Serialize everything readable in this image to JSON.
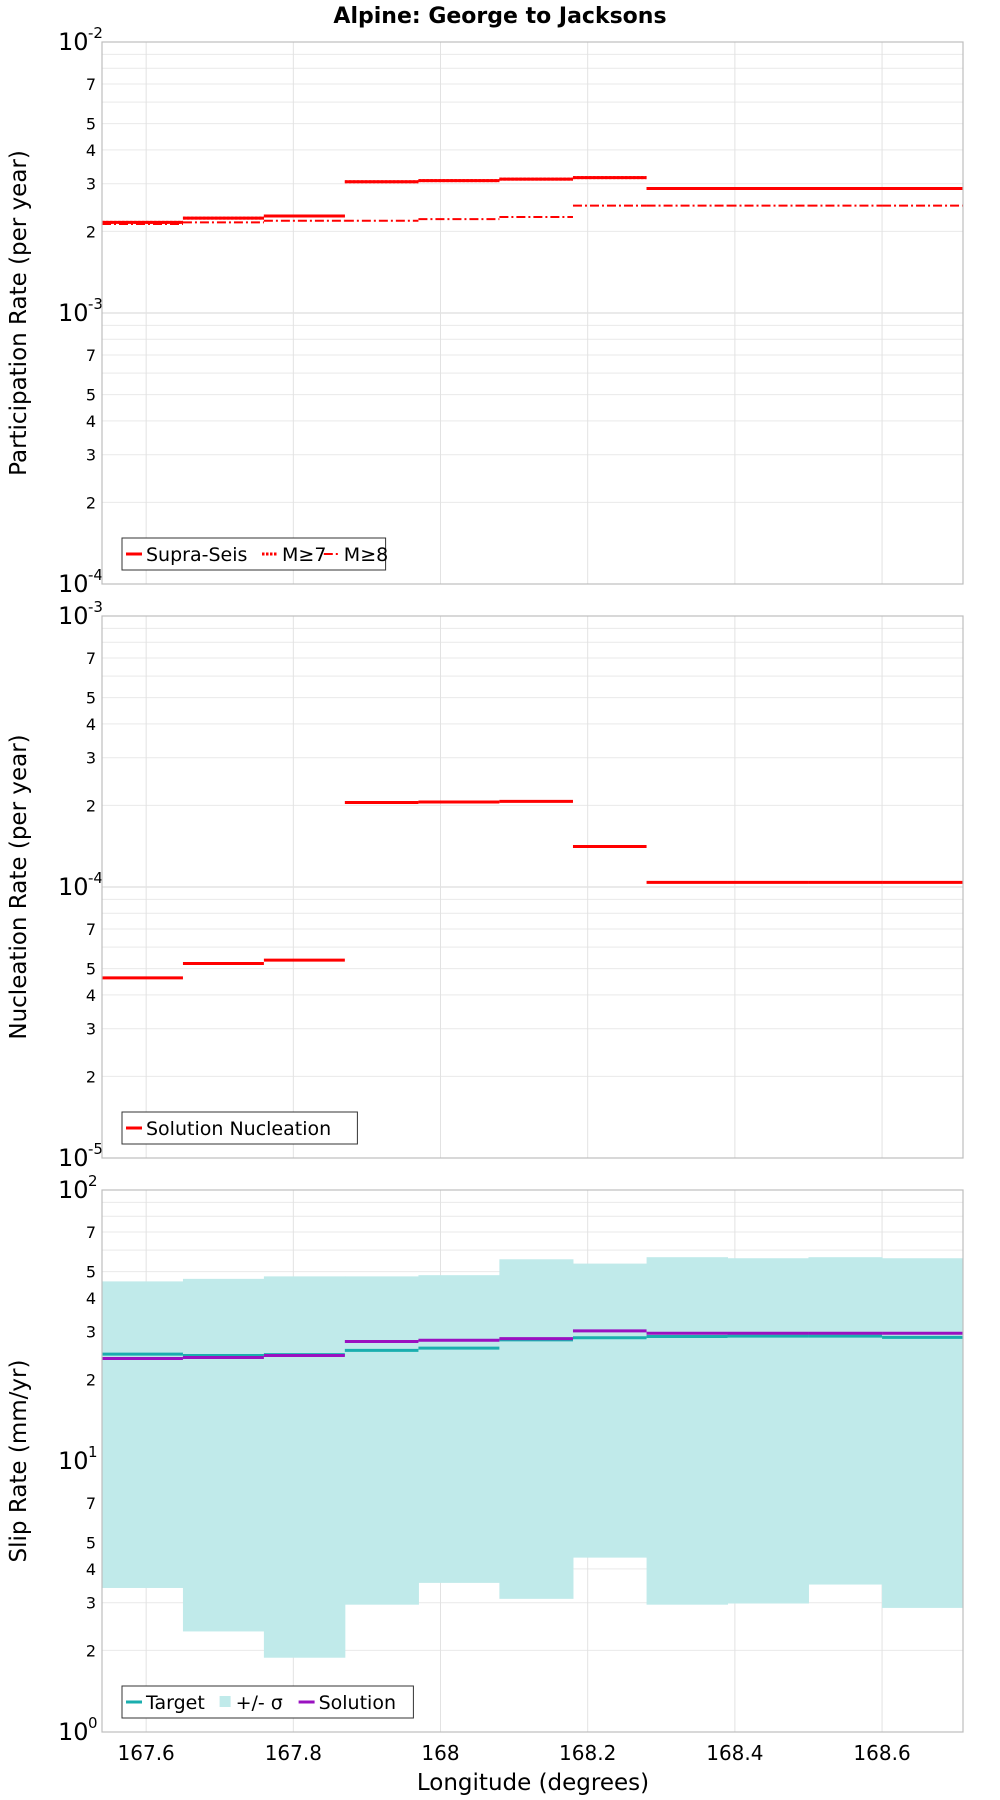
{
  "figure": {
    "title": "Alpine: George to Jacksons",
    "xlabel": "Longitude (degrees)"
  },
  "chart_data": [
    {
      "id": "participation",
      "type": "line",
      "step": true,
      "scale_y": "log",
      "ylabel": "Participation Rate (per year)",
      "xlim": [
        167.54,
        168.71
      ],
      "ylim_exp": [
        -4,
        -2
      ],
      "y_major_labels": [
        {
          "base": "10",
          "exp": "-4"
        },
        {
          "base": "10",
          "exp": "-3"
        },
        {
          "base": "10",
          "exp": "-2"
        }
      ],
      "x_ticks": [
        167.6,
        167.8,
        168,
        168.2,
        168.4,
        168.6
      ],
      "x_tick_labels": [
        "167.6",
        "167.8",
        "168",
        "168.2",
        "168.4",
        "168.6"
      ],
      "minor_tick_labels": [
        "2",
        "3",
        "4",
        "5",
        "7"
      ],
      "x_edges": [
        167.54,
        167.65,
        167.76,
        167.87,
        167.97,
        168.08,
        168.18,
        168.28,
        168.39,
        168.5,
        168.6,
        168.71
      ],
      "series": [
        {
          "name": "Supra-Seis",
          "style": "solid",
          "color": "#ff0000",
          "width": 3,
          "values": [
            0.00216,
            0.00224,
            0.00228,
            0.00305,
            0.00308,
            0.00312,
            0.00316,
            0.00288,
            0.00288,
            0.00288,
            0.00288
          ]
        },
        {
          "name": "M≥7",
          "style": "dotted",
          "color": "#ff0000",
          "width": 3,
          "values": [
            0.00216,
            0.00224,
            0.00228,
            0.00305,
            0.00308,
            0.00312,
            0.00316,
            0.00288,
            0.00288,
            0.00288,
            0.00288
          ]
        },
        {
          "name": "M≥8",
          "style": "dashdot",
          "color": "#ff0000",
          "width": 2,
          "values": [
            0.00213,
            0.00216,
            0.00219,
            0.00219,
            0.00222,
            0.00226,
            0.00249,
            0.00249,
            0.00249,
            0.00249,
            0.00249
          ]
        }
      ],
      "legend": {
        "position": "bottom-left",
        "entries": [
          "Supra-Seis",
          "M≥7",
          "M≥8"
        ]
      }
    },
    {
      "id": "nucleation",
      "type": "line",
      "step": true,
      "scale_y": "log",
      "ylabel": "Nucleation Rate (per year)",
      "xlim": [
        167.54,
        168.71
      ],
      "ylim_exp": [
        -5,
        -3
      ],
      "y_major_labels": [
        {
          "base": "10",
          "exp": "-5"
        },
        {
          "base": "10",
          "exp": "-4"
        },
        {
          "base": "10",
          "exp": "-3"
        }
      ],
      "x_ticks": [
        167.6,
        167.8,
        168,
        168.2,
        168.4,
        168.6
      ],
      "x_tick_labels": [
        "167.6",
        "167.8",
        "168",
        "168.2",
        "168.4",
        "168.6"
      ],
      "minor_tick_labels": [
        "2",
        "3",
        "4",
        "5",
        "7"
      ],
      "x_edges": [
        167.54,
        167.65,
        167.76,
        167.87,
        167.97,
        168.08,
        168.18,
        168.28,
        168.39,
        168.5,
        168.6,
        168.71
      ],
      "series": [
        {
          "name": "Solution Nucleation",
          "style": "solid",
          "color": "#ff0000",
          "width": 3,
          "values": [
            4.62e-05,
            5.22e-05,
            5.37e-05,
            0.000205,
            0.000206,
            0.000207,
            0.000141,
            0.000104,
            0.000104,
            0.000104,
            0.000104
          ]
        }
      ],
      "legend": {
        "position": "bottom-left",
        "entries": [
          "Solution Nucleation"
        ]
      }
    },
    {
      "id": "slip",
      "type": "area",
      "step": true,
      "scale_y": "log",
      "ylabel": "Slip Rate (mm/yr)",
      "xlim": [
        167.54,
        168.71
      ],
      "ylim_exp": [
        0,
        2
      ],
      "y_major_labels": [
        {
          "base": "10",
          "exp": "0"
        },
        {
          "base": "10",
          "exp": "1"
        },
        {
          "base": "10",
          "exp": "2"
        }
      ],
      "x_ticks": [
        167.6,
        167.8,
        168,
        168.2,
        168.4,
        168.6
      ],
      "x_tick_labels": [
        "167.6",
        "167.8",
        "168",
        "168.2",
        "168.4",
        "168.6"
      ],
      "minor_tick_labels": [
        "2",
        "3",
        "4",
        "5",
        "7"
      ],
      "x_edges": [
        167.54,
        167.65,
        167.76,
        167.87,
        167.97,
        168.08,
        168.18,
        168.28,
        168.39,
        168.5,
        168.6,
        168.71
      ],
      "band": {
        "name": "+/- σ",
        "color": "#c0eaea",
        "upper": [
          46,
          47,
          48,
          48,
          48.5,
          55.5,
          53.5,
          56.5,
          56,
          56.5,
          56
        ],
        "lower": [
          3.4,
          2.35,
          1.88,
          2.95,
          3.55,
          3.1,
          4.4,
          2.95,
          2.98,
          3.5,
          2.87
        ]
      },
      "series": [
        {
          "name": "Target",
          "style": "solid",
          "color": "#1aaeae",
          "width": 3,
          "values": [
            24.8,
            24.5,
            24.7,
            25.6,
            26.1,
            28.0,
            28.5,
            28.8,
            28.9,
            28.9,
            28.6
          ]
        },
        {
          "name": "Solution",
          "style": "solid",
          "color": "#9a11c0",
          "width": 3,
          "values": [
            23.9,
            24.1,
            24.5,
            27.6,
            27.9,
            28.3,
            30.2,
            29.6,
            29.6,
            29.6,
            29.6
          ]
        }
      ],
      "legend": {
        "position": "bottom-left",
        "entries": [
          "Target",
          "+/- σ",
          "Solution"
        ]
      }
    }
  ]
}
